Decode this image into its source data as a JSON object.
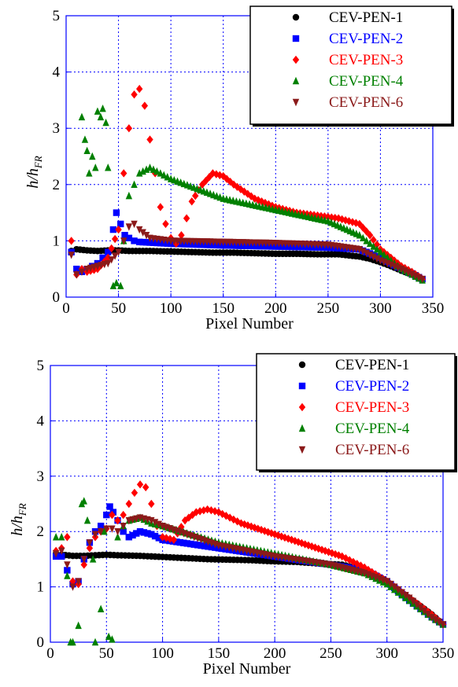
{
  "charts": [
    {
      "type": "scatter",
      "xlabel": "Pixel Number",
      "ylabel_main": "h/h",
      "ylabel_sub": "FR",
      "xlim": [
        0,
        350
      ],
      "ylim": [
        0,
        5
      ],
      "xticks": [
        "0",
        "50",
        "100",
        "150",
        "200",
        "250",
        "300",
        "350"
      ],
      "yticks": [
        "0",
        "1",
        "2",
        "3",
        "4",
        "5"
      ],
      "grid": true,
      "legend_position": "top-right",
      "series": [
        {
          "name": "CEV-PEN-1",
          "color": "#000000",
          "marker": "circle",
          "x": [
            5,
            10,
            20,
            30,
            40,
            50,
            60,
            80,
            100,
            120,
            140,
            160,
            180,
            200,
            220,
            240,
            260,
            280,
            290,
            300,
            310,
            320,
            330,
            340
          ],
          "y": [
            0.82,
            0.85,
            0.83,
            0.82,
            0.83,
            0.83,
            0.82,
            0.82,
            0.81,
            0.8,
            0.79,
            0.79,
            0.78,
            0.77,
            0.77,
            0.76,
            0.76,
            0.72,
            0.68,
            0.62,
            0.55,
            0.47,
            0.4,
            0.32
          ]
        },
        {
          "name": "CEV-PEN-2",
          "color": "#0000ff",
          "marker": "square",
          "x": [
            5,
            10,
            15,
            20,
            25,
            30,
            35,
            40,
            45,
            48,
            52,
            56,
            60,
            65,
            70,
            80,
            100,
            150,
            200,
            250,
            280,
            300,
            320,
            330,
            340
          ],
          "y": [
            0.8,
            0.5,
            0.45,
            0.5,
            0.55,
            0.6,
            0.7,
            0.8,
            1.2,
            1.5,
            1.3,
            1.1,
            1.05,
            1.0,
            0.98,
            0.97,
            0.95,
            0.92,
            0.9,
            0.88,
            0.85,
            0.7,
            0.5,
            0.42,
            0.32
          ]
        },
        {
          "name": "CEV-PEN-3",
          "color": "#ff0000",
          "marker": "diamond",
          "x": [
            5,
            10,
            15,
            20,
            30,
            40,
            50,
            55,
            60,
            65,
            70,
            75,
            80,
            85,
            90,
            95,
            100,
            105,
            110,
            115,
            120,
            130,
            140,
            150,
            160,
            180,
            200,
            220,
            240,
            260,
            280,
            290,
            300,
            310,
            320,
            330,
            340
          ],
          "y": [
            1.0,
            0.4,
            0.5,
            0.45,
            0.5,
            0.7,
            1.2,
            2.2,
            3.0,
            3.6,
            3.7,
            3.4,
            2.8,
            2.2,
            1.6,
            1.3,
            1.05,
            0.95,
            1.1,
            1.4,
            1.7,
            2.0,
            2.2,
            2.15,
            2.0,
            1.75,
            1.6,
            1.5,
            1.45,
            1.4,
            1.3,
            1.1,
            0.85,
            0.7,
            0.55,
            0.45,
            0.32
          ]
        },
        {
          "name": "CEV-PEN-4",
          "color": "#008000",
          "marker": "triangle-up",
          "x": [
            15,
            18,
            20,
            22,
            25,
            28,
            30,
            33,
            35,
            38,
            40,
            45,
            48,
            52,
            55,
            60,
            65,
            70,
            80,
            100,
            150,
            200,
            250,
            280,
            300,
            320,
            340
          ],
          "y": [
            3.2,
            2.8,
            2.6,
            2.2,
            2.5,
            2.3,
            3.3,
            3.2,
            3.35,
            3.1,
            2.3,
            0.2,
            0.25,
            0.2,
            1.0,
            1.8,
            2.0,
            2.2,
            2.3,
            2.1,
            1.75,
            1.55,
            1.35,
            1.1,
            0.8,
            0.5,
            0.3
          ]
        },
        {
          "name": "CEV-PEN-6",
          "color": "#8b1a1a",
          "marker": "triangle-down",
          "x": [
            5,
            10,
            15,
            20,
            30,
            40,
            50,
            55,
            60,
            65,
            70,
            80,
            100,
            150,
            200,
            250,
            280,
            300,
            320,
            340
          ],
          "y": [
            0.75,
            0.4,
            0.45,
            0.5,
            0.55,
            0.6,
            0.8,
            1.0,
            1.25,
            1.3,
            1.2,
            1.05,
            1.0,
            0.98,
            0.96,
            0.93,
            0.85,
            0.65,
            0.5,
            0.32
          ]
        }
      ]
    },
    {
      "type": "scatter",
      "xlabel": "Pixel Number",
      "ylabel_main": "h/h",
      "ylabel_sub": "FR",
      "xlim": [
        0,
        350
      ],
      "ylim": [
        0,
        5
      ],
      "xticks": [
        "0",
        "50",
        "100",
        "150",
        "200",
        "250",
        "300",
        "350"
      ],
      "yticks": [
        "0",
        "1",
        "2",
        "3",
        "4",
        "5"
      ],
      "grid": true,
      "legend_position": "top-right",
      "series": [
        {
          "name": "CEV-PEN-1",
          "color": "#000000",
          "marker": "circle",
          "x": [
            5,
            10,
            20,
            30,
            40,
            50,
            60,
            80,
            100,
            120,
            140,
            160,
            180,
            200,
            220,
            240,
            260,
            280,
            290,
            300,
            310,
            320,
            330,
            340,
            350
          ],
          "y": [
            1.6,
            1.58,
            1.56,
            1.56,
            1.57,
            1.58,
            1.57,
            1.56,
            1.54,
            1.52,
            1.5,
            1.49,
            1.48,
            1.46,
            1.45,
            1.42,
            1.4,
            1.3,
            1.2,
            1.1,
            0.95,
            0.8,
            0.65,
            0.5,
            0.32
          ]
        },
        {
          "name": "CEV-PEN-2",
          "color": "#0000ff",
          "marker": "square",
          "x": [
            5,
            10,
            15,
            20,
            25,
            30,
            35,
            40,
            45,
            50,
            53,
            56,
            60,
            65,
            70,
            80,
            90,
            100,
            150,
            200,
            250,
            280,
            300,
            320,
            340,
            350
          ],
          "y": [
            1.55,
            1.55,
            1.3,
            1.05,
            1.1,
            1.5,
            1.8,
            2.0,
            2.1,
            2.3,
            2.45,
            2.35,
            2.2,
            2.0,
            1.9,
            2.0,
            1.95,
            1.85,
            1.7,
            1.55,
            1.4,
            1.3,
            1.1,
            0.75,
            0.45,
            0.32
          ]
        },
        {
          "name": "CEV-PEN-3",
          "color": "#ff0000",
          "marker": "diamond",
          "x": [
            5,
            10,
            15,
            20,
            25,
            30,
            35,
            40,
            45,
            50,
            55,
            60,
            65,
            70,
            75,
            80,
            85,
            90,
            95,
            100,
            110,
            120,
            130,
            140,
            150,
            170,
            200,
            230,
            260,
            280,
            300,
            320,
            340,
            350
          ],
          "y": [
            1.65,
            1.7,
            1.9,
            1.1,
            1.05,
            1.4,
            1.7,
            1.9,
            2.0,
            2.05,
            2.3,
            2.2,
            2.3,
            2.5,
            2.7,
            2.85,
            2.8,
            2.5,
            2.1,
            1.9,
            1.85,
            2.2,
            2.35,
            2.4,
            2.35,
            2.15,
            1.95,
            1.75,
            1.55,
            1.35,
            1.1,
            0.8,
            0.5,
            0.32
          ]
        },
        {
          "name": "CEV-PEN-4",
          "color": "#008000",
          "marker": "triangle-up",
          "x": [
            5,
            10,
            15,
            18,
            20,
            25,
            28,
            30,
            33,
            38,
            40,
            45,
            48,
            52,
            55,
            60,
            65,
            70,
            80,
            90,
            100,
            150,
            200,
            250,
            280,
            300,
            320,
            340,
            350
          ],
          "y": [
            1.9,
            1.9,
            1.2,
            0.0,
            0.0,
            0.3,
            2.5,
            2.55,
            2.2,
            1.5,
            0.0,
            0.6,
            2.0,
            0.1,
            0.05,
            1.9,
            2.1,
            2.2,
            2.25,
            2.15,
            2.1,
            1.8,
            1.6,
            1.4,
            1.25,
            1.05,
            0.75,
            0.45,
            0.32
          ]
        },
        {
          "name": "CEV-PEN-6",
          "color": "#8b1a1a",
          "marker": "triangle-down",
          "x": [
            5,
            10,
            15,
            20,
            25,
            30,
            35,
            40,
            45,
            50,
            55,
            60,
            65,
            70,
            80,
            90,
            100,
            150,
            200,
            250,
            280,
            300,
            320,
            340,
            350
          ],
          "y": [
            1.6,
            1.65,
            1.4,
            1.0,
            1.1,
            1.5,
            1.8,
            1.95,
            2.0,
            2.05,
            2.05,
            2.0,
            2.1,
            2.2,
            2.25,
            2.2,
            2.1,
            1.75,
            1.55,
            1.4,
            1.25,
            1.1,
            0.8,
            0.45,
            0.32
          ]
        }
      ]
    }
  ]
}
